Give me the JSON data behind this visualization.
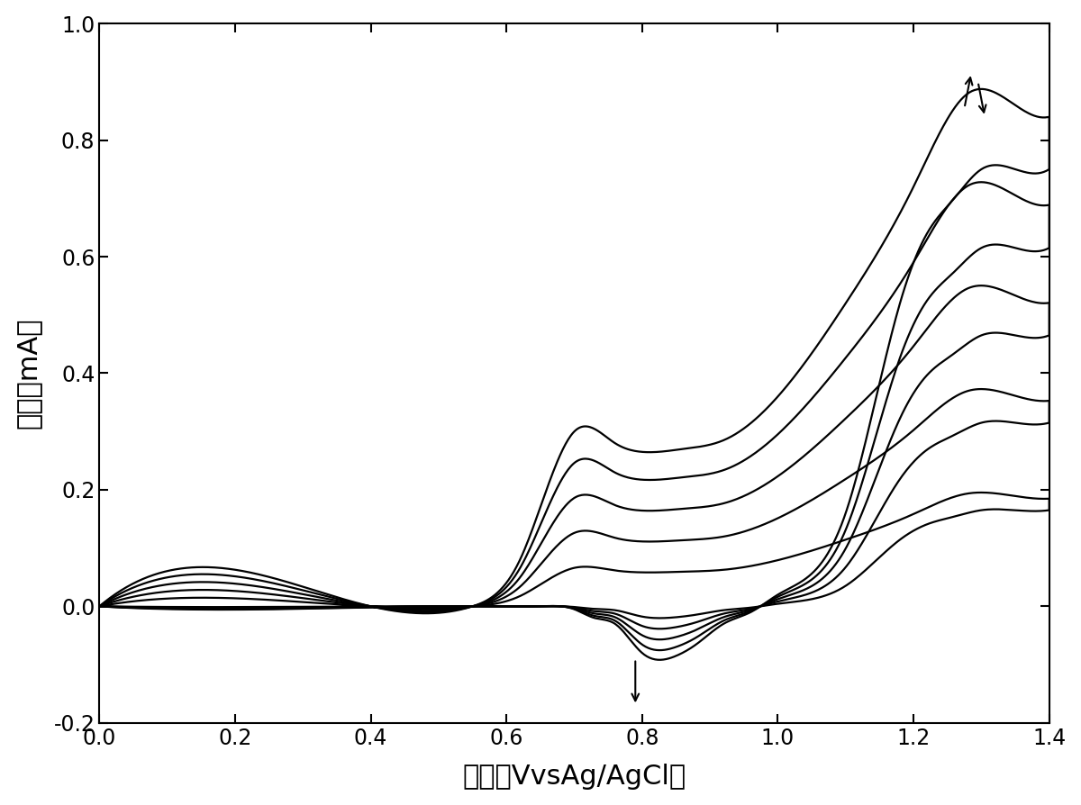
{
  "xlabel": "电压（VvsAg/AgCl）",
  "ylabel": "电流（mA）",
  "xlim": [
    0.0,
    1.4
  ],
  "ylim": [
    -0.2,
    1.0
  ],
  "xticks": [
    0.0,
    0.2,
    0.4,
    0.6,
    0.8,
    1.0,
    1.2,
    1.4
  ],
  "yticks": [
    -0.2,
    0.0,
    0.2,
    0.4,
    0.6,
    0.8,
    1.0
  ],
  "line_color": "#000000",
  "background_color": "#ffffff",
  "n_cycles": 5,
  "scales": [
    0.22,
    0.42,
    0.62,
    0.82,
    1.0
  ],
  "linewidth": 1.6
}
